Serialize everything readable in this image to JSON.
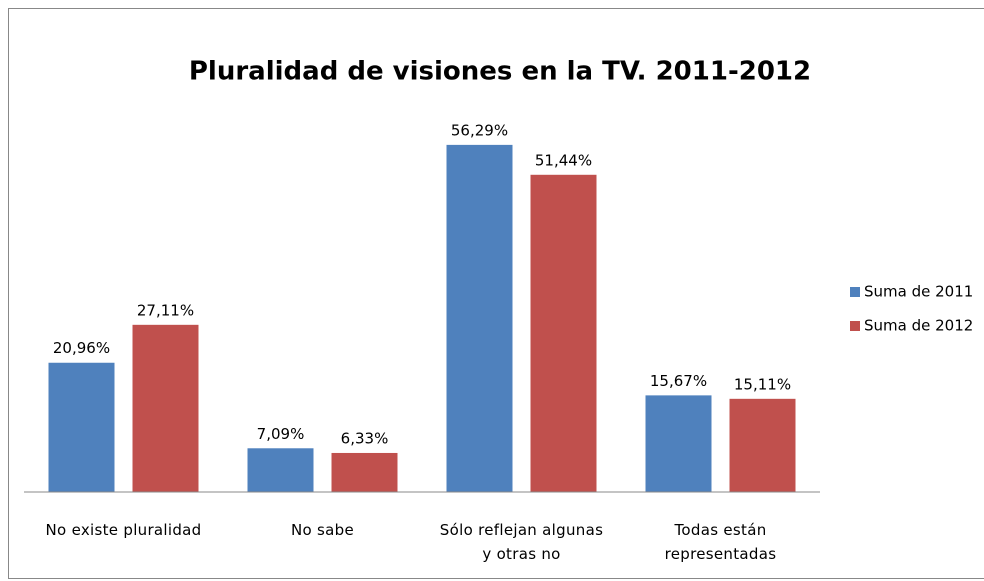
{
  "chart_data": {
    "type": "bar",
    "title": "Pluralidad de visiones en la TV. 2011-2012",
    "categories": [
      "No existe pluralidad",
      "No sabe",
      "Sólo reflejan algunas y otras no",
      "Todas están representadas"
    ],
    "series": [
      {
        "name": "Suma de 2011",
        "color": "#4f81bd",
        "values": [
          20.96,
          7.09,
          56.29,
          15.67
        ],
        "value_labels": [
          "20,96%",
          "7,09%",
          "56,29%",
          "15,67%"
        ]
      },
      {
        "name": "Suma de 2012",
        "color": "#c0504d",
        "values": [
          27.11,
          6.33,
          51.44,
          15.11
        ],
        "value_labels": [
          "27,11%",
          "6,33%",
          "51,44%",
          "15,11%"
        ]
      }
    ],
    "ylim": [
      0,
      60
    ],
    "legend": "right"
  }
}
